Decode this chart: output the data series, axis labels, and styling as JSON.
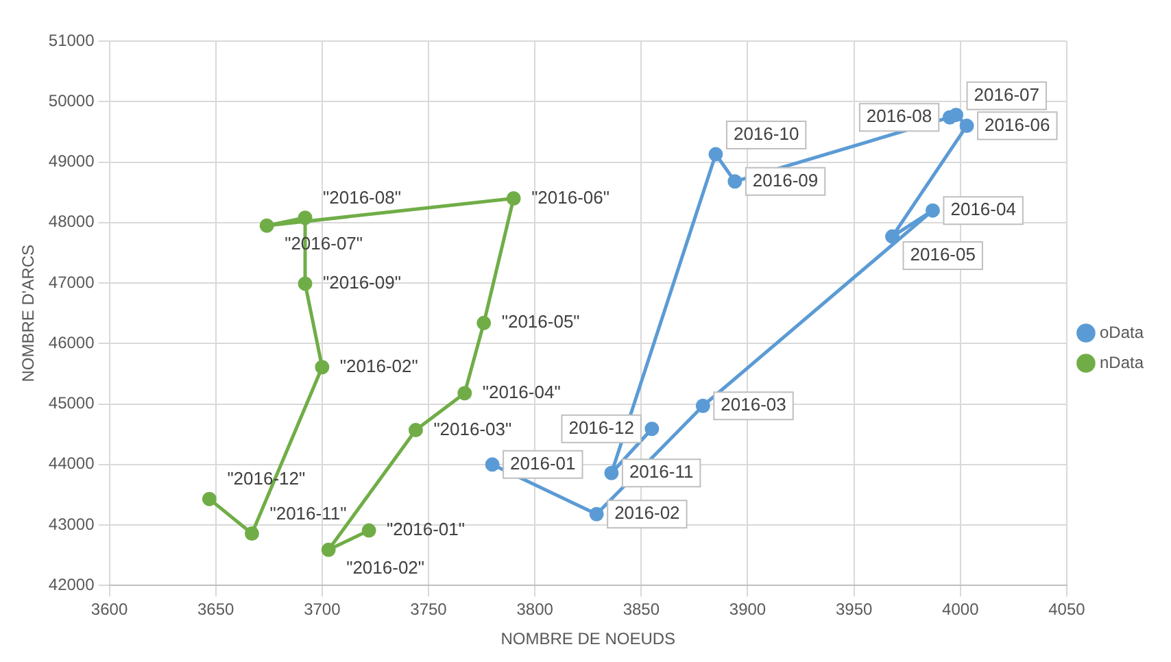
{
  "chart_data": {
    "type": "line",
    "xlabel": "NOMBRE DE NOEUDS",
    "ylabel": "NOMBRE D'ARCS",
    "xlim": [
      3600,
      4050
    ],
    "xticks": [
      3600,
      3650,
      3700,
      3750,
      3800,
      3850,
      3900,
      3950,
      4000,
      4050
    ],
    "ylim": [
      42000,
      51000
    ],
    "yticks": [
      42000,
      43000,
      44000,
      45000,
      46000,
      47000,
      48000,
      49000,
      50000,
      51000
    ],
    "grid": true,
    "legend": "right",
    "marker": "circle",
    "line_style": "solid",
    "series": [
      {
        "name": "oData",
        "color": "#5b9bd5",
        "x": [
          3780,
          3829,
          3879,
          3987,
          3968,
          4003,
          3998,
          3995,
          3894,
          3885,
          3836,
          3855
        ],
        "values": [
          44000,
          43180,
          44970,
          48200,
          47770,
          49600,
          49780,
          49740,
          48680,
          49130,
          43860,
          44590
        ],
        "value_labels": [
          "2016-01",
          "2016-02",
          "2016-03",
          "2016-04",
          "2016-05",
          "2016-06",
          "2016-07",
          "2016-08",
          "2016-09",
          "2016-10",
          "2016-11",
          "2016-12"
        ]
      },
      {
        "name": "nData",
        "color": "#70ad47",
        "x": [
          3722,
          3703,
          3744,
          3767,
          3776,
          3790,
          3674,
          3692,
          3692,
          3700,
          3667,
          3647
        ],
        "values": [
          42910,
          42590,
          44570,
          45180,
          46340,
          48400,
          47950,
          48080,
          46990,
          45610,
          42860,
          43430
        ],
        "value_labels": [
          "\"2016-01\"",
          "\"2016-02\"",
          "\"2016-03\"",
          "\"2016-04\"",
          "\"2016-05\"",
          "\"2016-06\"",
          "\"2016-07\"",
          "\"2016-08\"",
          "\"2016-09\"",
          "\"2016-02\"",
          "\"2016-11\"",
          "\"2016-12\""
        ]
      }
    ]
  }
}
